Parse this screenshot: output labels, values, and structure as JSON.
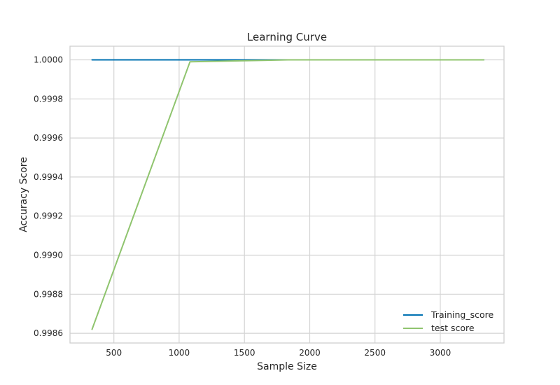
{
  "chart_data": {
    "type": "line",
    "title": "Learning Curve",
    "xlabel": "Sample Size",
    "ylabel": "Accuracy Score",
    "xlim": [
      164,
      3488
    ],
    "ylim": [
      0.99855,
      1.00007
    ],
    "xticks": [
      500,
      1000,
      1500,
      2000,
      2500,
      3000
    ],
    "xtick_labels": [
      "500",
      "1000",
      "1500",
      "2000",
      "2500",
      "3000"
    ],
    "yticks": [
      0.9986,
      0.9988,
      0.999,
      0.9992,
      0.9994,
      0.9996,
      0.9998,
      1.0
    ],
    "ytick_labels": [
      "0.9986",
      "0.9988",
      "0.9990",
      "0.9992",
      "0.9994",
      "0.9996",
      "0.9998",
      "1.0000"
    ],
    "grid": true,
    "legend_position": "lower-right",
    "x": [
      333,
      1083,
      1833,
      2583,
      3333
    ],
    "series": [
      {
        "name": "Training_score",
        "color": "#0072b2",
        "values": [
          1.0,
          1.0,
          1.0,
          1.0,
          1.0
        ]
      },
      {
        "name": "test score",
        "color": "#8fc46e",
        "values": [
          0.99862,
          0.99999,
          1.0,
          1.0,
          1.0
        ]
      }
    ]
  }
}
